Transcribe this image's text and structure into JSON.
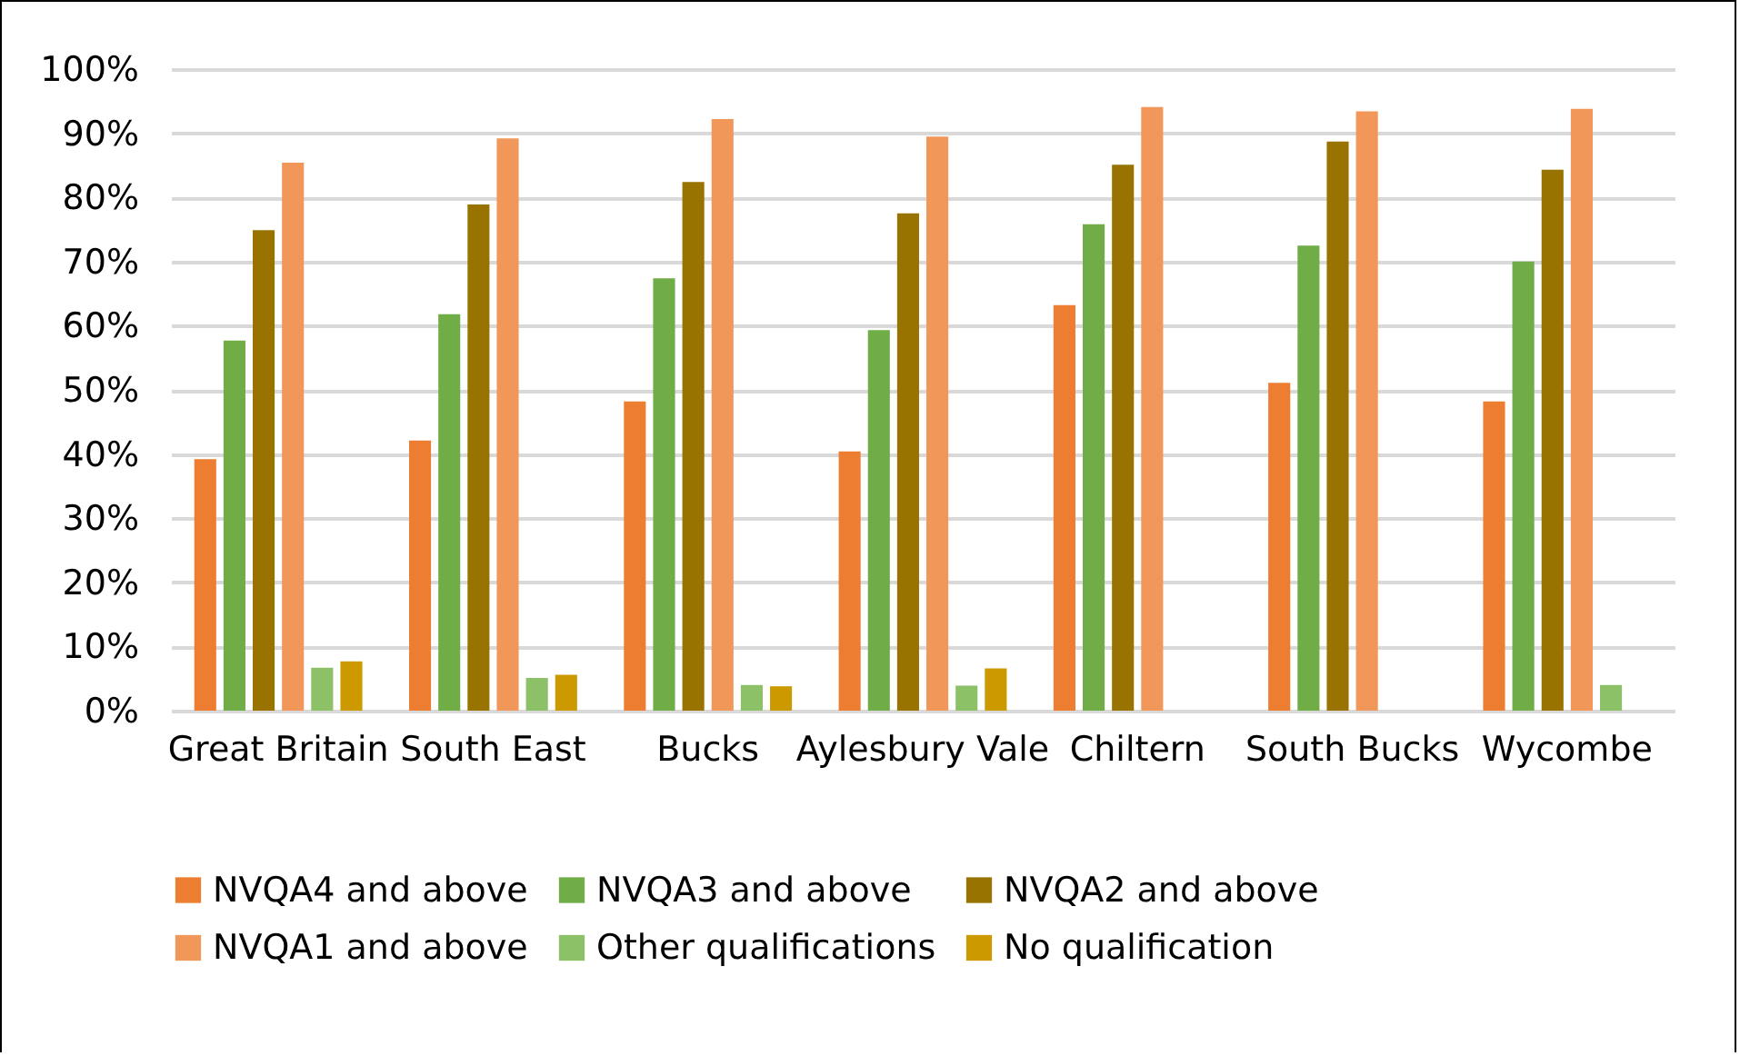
{
  "chart_data": {
    "type": "bar",
    "categories": [
      "Great Britain",
      "South East",
      "Bucks",
      "Aylesbury Vale",
      "Chiltern",
      "South Bucks",
      "Wycombe"
    ],
    "series": [
      {
        "name": "NVQA4 and above",
        "color": "#ed7d31",
        "values": [
          39.2,
          42.1,
          48.2,
          40.4,
          63.2,
          51.1,
          48.2
        ]
      },
      {
        "name": "NVQA3 and above",
        "color": "#70ad47",
        "values": [
          57.7,
          61.8,
          67.4,
          59.3,
          75.8,
          72.5,
          70.0
        ]
      },
      {
        "name": "NVQA2 and above",
        "color": "#997300",
        "values": [
          74.9,
          78.9,
          82.4,
          77.5,
          85.1,
          88.7,
          84.3
        ]
      },
      {
        "name": "NVQA1 and above",
        "color": "#f1975a",
        "values": [
          85.4,
          89.2,
          92.2,
          89.5,
          94.1,
          93.4,
          93.8
        ]
      },
      {
        "name": "Other qualifications",
        "color": "#8cc168",
        "values": [
          6.7,
          5.1,
          4.0,
          3.9,
          null,
          null,
          4.0
        ]
      },
      {
        "name": "No qualification",
        "color": "#cc9900",
        "values": [
          7.7,
          5.6,
          3.8,
          6.6,
          null,
          null,
          null
        ]
      }
    ],
    "ylim": [
      0,
      100
    ],
    "yticks": [
      {
        "value": 0,
        "label": "0%"
      },
      {
        "value": 10,
        "label": "10%"
      },
      {
        "value": 20,
        "label": "20%"
      },
      {
        "value": 30,
        "label": "30%"
      },
      {
        "value": 40,
        "label": "40%"
      },
      {
        "value": 50,
        "label": "50%"
      },
      {
        "value": 60,
        "label": "60%"
      },
      {
        "value": 70,
        "label": "70%"
      },
      {
        "value": 80,
        "label": "80%"
      },
      {
        "value": 90,
        "label": "90%"
      },
      {
        "value": 100,
        "label": "100%"
      }
    ],
    "grid": "y",
    "legend": "bottom"
  }
}
